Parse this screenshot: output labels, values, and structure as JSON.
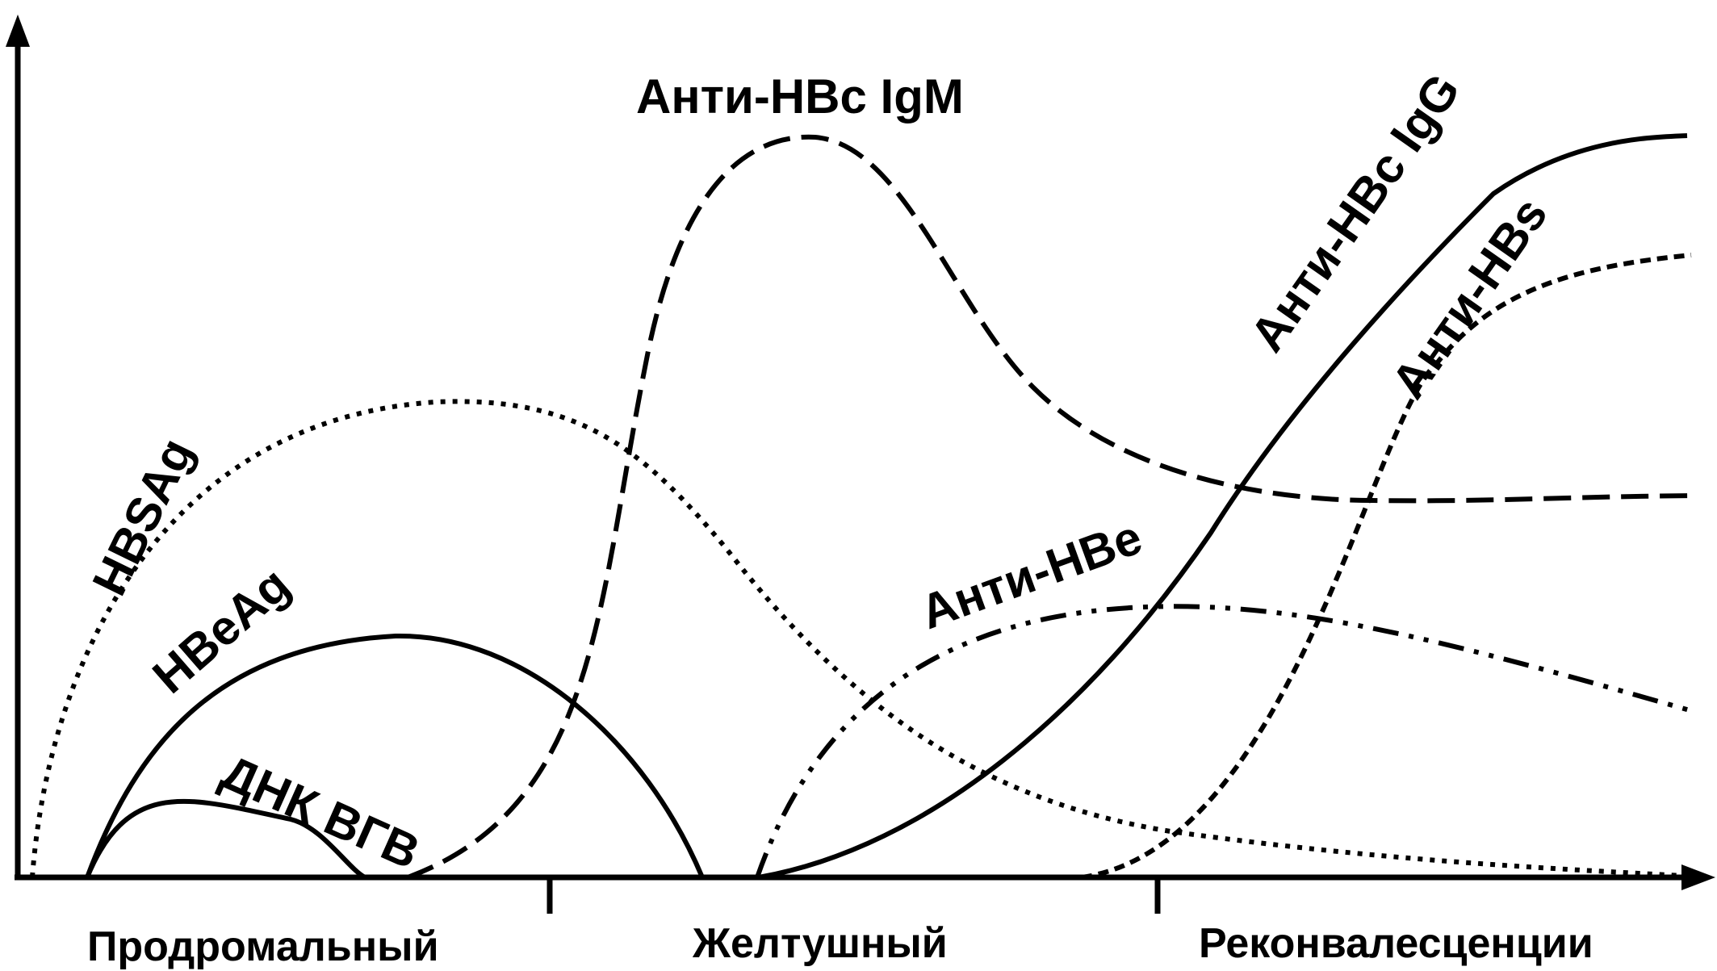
{
  "curves": [
    {
      "id": "hbsag",
      "label": "HBSAg",
      "style": "dotted"
    },
    {
      "id": "hbeag",
      "label": "HBeAg",
      "style": "solid"
    },
    {
      "id": "dnk",
      "label": "ДНК ВГВ",
      "style": "solid"
    },
    {
      "id": "anti-hbc-igm",
      "label": "Анти-HBc IgM",
      "style": "dashed"
    },
    {
      "id": "anti-hbc-igg",
      "label": "Анти-HBc IgG",
      "style": "solid"
    },
    {
      "id": "anti-hbs",
      "label": "Анти-HBs",
      "style": "short-dashed"
    },
    {
      "id": "anti-hbe",
      "label": "Анти-HBe",
      "style": "dash-dot-dot"
    }
  ],
  "phases": [
    "Продромальный",
    "Желтушный",
    "Реконвалесценции"
  ],
  "color": "#000000"
}
